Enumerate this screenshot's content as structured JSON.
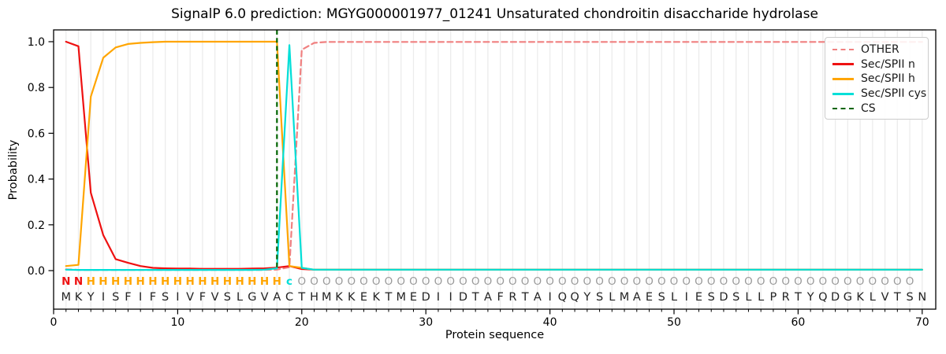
{
  "chart_data": {
    "type": "line",
    "title": "SignalP 6.0 prediction: MGYG000001977_01241 Unsaturated chondroitin disaccharide hydrolase",
    "xlabel": "Protein sequence",
    "ylabel": "Probability",
    "xticks": [
      0,
      10,
      20,
      30,
      40,
      50,
      60,
      70
    ],
    "ytick_labels": [
      "0.0",
      "0.2",
      "0.4",
      "0.6",
      "0.8",
      "1.0"
    ],
    "xlim": [
      0,
      71
    ],
    "ylim": [
      -0.17,
      1.05
    ],
    "grid": "vertical lines at every residue position",
    "legend_position": "upper right",
    "legend": [
      "OTHER",
      "Sec/SPII n",
      "Sec/SPII h",
      "Sec/SPII cys",
      "CS"
    ],
    "sequence": "MKYISFIFSIVFVSLGVACTHMKKEKTMEDIIDTAFRTAIQQYSLMAESLIESDSLLPRTYQDGKLVTSN",
    "residue_states": "NNHHHHHHHHHHHHHHHHcOOOOOOOOOOOOOOOOOOOOOOOOOOOOOOOOOOOOOOOOOOOOOOOOOO",
    "state_colors": {
      "N": "#ee1111",
      "H": "#ffa500",
      "c": "#00dfd8",
      "O": "#9a9a9a"
    },
    "sequence_color": "#222222",
    "cs_line": {
      "label": "CS",
      "position": 18,
      "color": "#006400",
      "style": "dashed"
    },
    "series": [
      {
        "name": "OTHER",
        "color": "#f08080",
        "style": "dashed",
        "values": [
          0.006,
          0.003,
          0.003,
          0.003,
          0.003,
          0.003,
          0.003,
          0.003,
          0.003,
          0.003,
          0.003,
          0.003,
          0.003,
          0.003,
          0.003,
          0.003,
          0.003,
          0.004,
          0.015,
          0.965,
          0.995,
          0.999,
          0.999,
          0.999,
          0.999,
          0.999,
          0.999,
          0.999,
          0.999,
          0.999,
          0.999,
          0.999,
          0.999,
          0.999,
          0.999,
          0.999,
          0.999,
          0.999,
          0.999,
          0.999,
          0.999,
          0.999,
          0.999,
          0.999,
          0.999,
          0.999,
          0.999,
          0.999,
          0.999,
          0.999,
          0.999,
          0.999,
          0.999,
          0.999,
          0.999,
          0.999,
          0.999,
          0.999,
          0.999,
          0.999,
          0.999,
          0.999,
          0.999,
          0.999,
          0.999,
          0.999,
          0.999,
          0.999,
          0.999,
          0.999
        ]
      },
      {
        "name": "Sec/SPII n",
        "color": "#ee1111",
        "style": "solid",
        "values": [
          1.0,
          0.98,
          0.34,
          0.155,
          0.05,
          0.034,
          0.02,
          0.012,
          0.01,
          0.009,
          0.009,
          0.008,
          0.008,
          0.008,
          0.008,
          0.009,
          0.01,
          0.013,
          0.02,
          0.007,
          0.004,
          0.004,
          0.004,
          0.004,
          0.004,
          0.004,
          0.004,
          0.004,
          0.004,
          0.004,
          0.004,
          0.004,
          0.004,
          0.004,
          0.004,
          0.004,
          0.004,
          0.004,
          0.004,
          0.004,
          0.004,
          0.004,
          0.004,
          0.004,
          0.004,
          0.004,
          0.004,
          0.004,
          0.004,
          0.004,
          0.004,
          0.004,
          0.004,
          0.004,
          0.004,
          0.004,
          0.004,
          0.004,
          0.004,
          0.004,
          0.004,
          0.004,
          0.004,
          0.004,
          0.004,
          0.004,
          0.004,
          0.004,
          0.004,
          0.004
        ]
      },
      {
        "name": "Sec/SPII h",
        "color": "#ffa500",
        "style": "solid",
        "values": [
          0.02,
          0.025,
          0.76,
          0.93,
          0.975,
          0.99,
          0.995,
          0.998,
          1.0,
          1.0,
          1.0,
          1.0,
          1.0,
          1.0,
          1.0,
          1.0,
          1.0,
          1.0,
          0.02,
          0.012,
          0.004,
          0.004,
          0.004,
          0.004,
          0.004,
          0.004,
          0.004,
          0.004,
          0.004,
          0.004,
          0.004,
          0.004,
          0.004,
          0.004,
          0.004,
          0.004,
          0.004,
          0.004,
          0.004,
          0.004,
          0.004,
          0.004,
          0.004,
          0.004,
          0.004,
          0.004,
          0.004,
          0.004,
          0.004,
          0.004,
          0.004,
          0.004,
          0.004,
          0.004,
          0.004,
          0.004,
          0.004,
          0.004,
          0.004,
          0.004,
          0.004,
          0.004,
          0.004,
          0.004,
          0.004,
          0.004,
          0.004,
          0.004,
          0.004,
          0.004
        ]
      },
      {
        "name": "Sec/SPII cys",
        "color": "#00dfd8",
        "style": "solid",
        "values": [
          0.004,
          0.003,
          0.003,
          0.003,
          0.003,
          0.003,
          0.003,
          0.003,
          0.003,
          0.003,
          0.003,
          0.003,
          0.003,
          0.003,
          0.003,
          0.003,
          0.004,
          0.01,
          0.985,
          0.012,
          0.004,
          0.004,
          0.004,
          0.004,
          0.004,
          0.004,
          0.004,
          0.004,
          0.004,
          0.004,
          0.004,
          0.004,
          0.004,
          0.004,
          0.004,
          0.004,
          0.004,
          0.004,
          0.004,
          0.004,
          0.004,
          0.004,
          0.004,
          0.004,
          0.004,
          0.004,
          0.004,
          0.004,
          0.004,
          0.004,
          0.004,
          0.004,
          0.004,
          0.004,
          0.004,
          0.004,
          0.004,
          0.004,
          0.004,
          0.004,
          0.004,
          0.004,
          0.004,
          0.004,
          0.004,
          0.004,
          0.004,
          0.004,
          0.004,
          0.004
        ]
      }
    ]
  }
}
